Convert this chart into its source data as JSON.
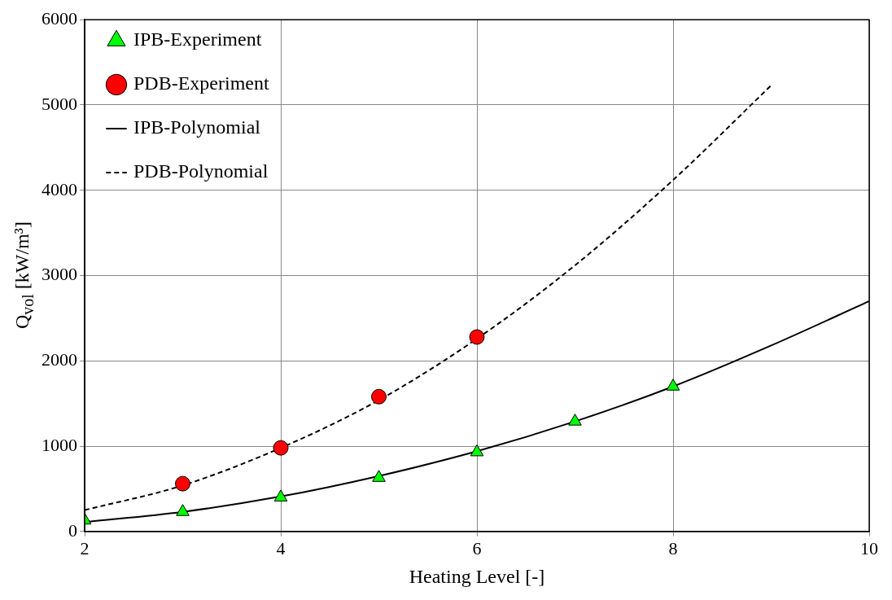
{
  "chart_data": {
    "type": "line",
    "xlabel": "Heating Level [-]",
    "ylabel": "Q$_{vol}$ [kW/m³]",
    "xlim": [
      2,
      10
    ],
    "xticks": [
      2,
      4,
      6,
      8,
      10
    ],
    "ylim": [
      0,
      6000
    ],
    "yticks": [
      0,
      1000,
      2000,
      3000,
      4000,
      5000,
      6000
    ],
    "grid": true,
    "legend": "top left",
    "series": [
      {
        "name": "IPB-Experiment",
        "type": "scatter",
        "marker": "triangle",
        "color": "#00ff00",
        "x": [
          2,
          3,
          4,
          5,
          6,
          7,
          8
        ],
        "values": [
          130,
          230,
          400,
          630,
          930,
          1290,
          1700
        ]
      },
      {
        "name": "PDB-Experiment",
        "type": "scatter",
        "marker": "circle",
        "color": "#ff0000",
        "x": [
          3,
          4,
          5,
          6
        ],
        "values": [
          560,
          980,
          1580,
          2280
        ]
      },
      {
        "name": "IPB-Polynomial",
        "type": "line",
        "line_style": "solid",
        "marker": "none",
        "color": "#000000",
        "x": [
          2,
          3,
          4,
          5,
          6,
          7,
          8,
          9,
          10
        ],
        "values": [
          110,
          230,
          410,
          650,
          940,
          1290,
          1700,
          2180,
          2700
        ]
      },
      {
        "name": "PDB-Polynomial",
        "type": "line",
        "line_style": "dashed",
        "marker": "none",
        "color": "#000000",
        "x": [
          2,
          3,
          4,
          5,
          6,
          7,
          8,
          9
        ],
        "values": [
          250,
          540,
          980,
          1540,
          2260,
          3120,
          4120,
          5230
        ]
      }
    ]
  }
}
